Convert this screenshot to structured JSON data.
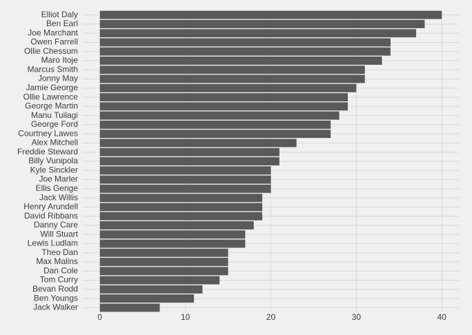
{
  "chart_data": {
    "type": "bar",
    "orientation": "horizontal",
    "categories": [
      "Elliot Daly",
      "Ben Earl",
      "Joe Marchant",
      "Owen Farrell",
      "Ollie Chessum",
      "Maro Itoje",
      "Marcus Smith",
      "Jonny May",
      "Jamie George",
      "Ollie Lawrence",
      "George Martin",
      "Manu Tuilagi",
      "George Ford",
      "Courtney Lawes",
      "Alex Mitchell",
      "Freddie Steward",
      "Billy Vunipola",
      "Kyle Sinckler",
      "Joe Marler",
      "Ellis Genge",
      "Jack Willis",
      "Henry Arundell",
      "David Ribbans",
      "Danny Care",
      "Will Stuart",
      "Lewis Ludlam",
      "Theo Dan",
      "Max Malins",
      "Dan Cole",
      "Tom Curry",
      "Bevan Rodd",
      "Ben Youngs",
      "Jack Walker"
    ],
    "values": [
      40,
      38,
      37,
      34,
      34,
      33,
      31,
      31,
      30,
      29,
      29,
      28,
      27,
      27,
      23,
      21,
      21,
      20,
      20,
      20,
      19,
      19,
      19,
      18,
      17,
      17,
      15,
      15,
      15,
      14,
      12,
      11,
      7
    ],
    "color": "#595959",
    "xlim": [
      -2,
      42
    ],
    "xticks": [
      0,
      10,
      20,
      30,
      40
    ],
    "grid": true
  }
}
